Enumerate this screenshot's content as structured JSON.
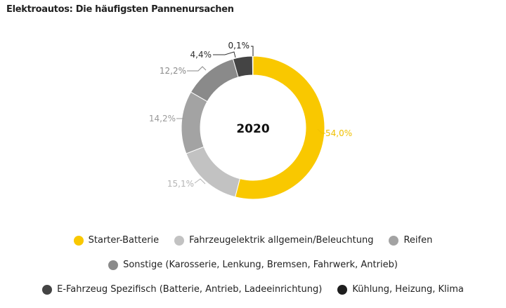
{
  "title": "Elektroautos: Die häufigsten Pannenursachen",
  "chart_data": {
    "type": "pie",
    "variant": "donut",
    "center_label": "2020",
    "slices": [
      {
        "label": "Starter-Batterie",
        "value": 54.0,
        "text": "54,0%",
        "color": "#f9c800"
      },
      {
        "label": "Fahrzeugelektrik allgemein/Beleuchtung",
        "value": 15.1,
        "text": "15,1%",
        "color": "#c2c2c2"
      },
      {
        "label": "Reifen",
        "value": 14.2,
        "text": "14,2%",
        "color": "#a3a3a3"
      },
      {
        "label": "Sonstige (Karosserie, Lenkung, Bremsen, Fahrwerk, Antrieb)",
        "value": 12.2,
        "text": "12,2%",
        "color": "#8a8a8a"
      },
      {
        "label": "E-Fahrzeug Spezifisch (Batterie, Antrieb, Ladeeinrichtung)",
        "value": 4.4,
        "text": "4,4%",
        "color": "#444444"
      },
      {
        "label": "Kühlung, Heizung, Klima",
        "value": 0.1,
        "text": "0,1%",
        "color": "#1e1e1e"
      }
    ],
    "label_colors": [
      "#f0c000",
      "#b4b4b4",
      "#9a9a9a",
      "#8a8a8a",
      "#333333",
      "#222222"
    ],
    "legend_placement": "bottom"
  }
}
